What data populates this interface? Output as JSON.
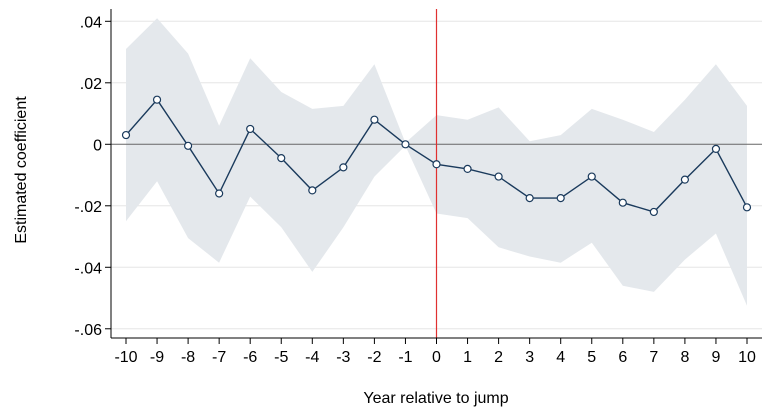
{
  "chart_data": {
    "type": "line",
    "title": "",
    "xlabel": "Year relative to jump",
    "ylabel": "Estimated coefficient",
    "x": [
      -10,
      -9,
      -8,
      -7,
      -6,
      -5,
      -4,
      -3,
      -2,
      -1,
      0,
      1,
      2,
      3,
      4,
      5,
      6,
      7,
      8,
      9,
      10
    ],
    "xticks": [
      "-10",
      "-9",
      "-8",
      "-7",
      "-6",
      "-5",
      "-4",
      "-3",
      "-2",
      "-1",
      "0",
      "1",
      "2",
      "3",
      "4",
      "5",
      "6",
      "7",
      "8",
      "9",
      "10"
    ],
    "yticks": [
      {
        "value": 0.04,
        "label": ".04"
      },
      {
        "value": 0.02,
        "label": ".02"
      },
      {
        "value": 0,
        "label": "0"
      },
      {
        "value": -0.02,
        "label": "-.02"
      },
      {
        "value": -0.04,
        "label": "-.04"
      },
      {
        "value": -0.06,
        "label": "-.06"
      }
    ],
    "xlim": [
      -10,
      10
    ],
    "ylim": [
      -0.063,
      0.044
    ],
    "grid": "horizontal",
    "series": [
      {
        "values": [
          0.003,
          0.0145,
          -0.0005,
          -0.016,
          0.005,
          -0.0045,
          -0.015,
          -0.0075,
          0.008,
          0.0,
          -0.0065,
          -0.008,
          -0.0105,
          -0.0175,
          -0.0175,
          -0.0105,
          -0.019,
          -0.022,
          -0.0115,
          -0.0015,
          -0.0205
        ],
        "ci_upper": [
          0.031,
          0.041,
          0.0295,
          0.006,
          0.028,
          0.017,
          0.0115,
          0.0125,
          0.026,
          0.0005,
          0.0095,
          0.008,
          0.012,
          0.001,
          0.003,
          0.0115,
          0.008,
          0.004,
          0.0145,
          0.026,
          0.0125
        ],
        "ci_lower": [
          -0.025,
          -0.012,
          -0.0305,
          -0.0385,
          -0.017,
          -0.027,
          -0.0415,
          -0.027,
          -0.0105,
          -0.0005,
          -0.0225,
          -0.024,
          -0.0335,
          -0.0365,
          -0.0385,
          -0.032,
          -0.046,
          -0.048,
          -0.0375,
          -0.029,
          -0.0525
        ]
      }
    ],
    "reference_lines": [
      {
        "axis": "y",
        "value": 0
      },
      {
        "axis": "x",
        "value": 0
      }
    ],
    "colors": {
      "line": "#1a3a5c",
      "marker_fill": "#ffffff",
      "ci_band": "#e4e8ec",
      "vertical_ref": "#e03030",
      "zero_line": "#666666",
      "grid": "#e6e6e6"
    }
  }
}
